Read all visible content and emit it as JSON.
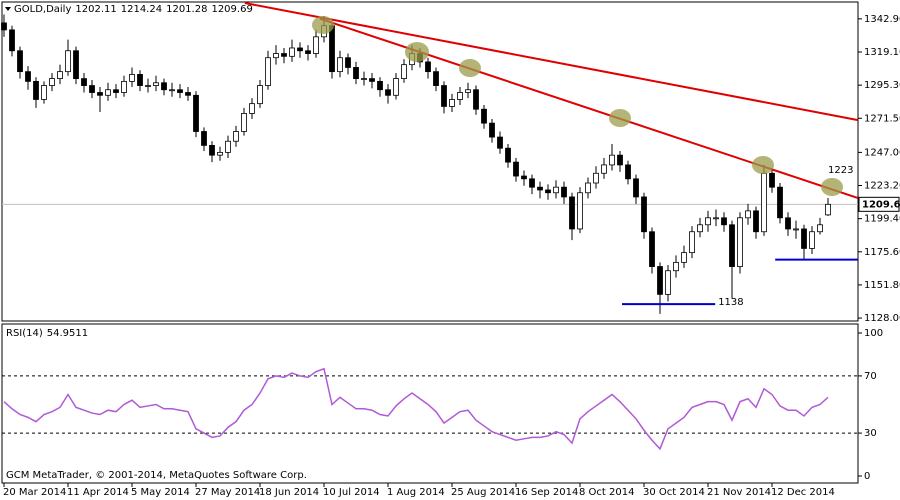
{
  "chart_data": [
    {
      "type": "candlestick",
      "symbol": "GOLD,Daily",
      "categories": [
        "20 Mar 2014",
        null,
        null,
        null,
        null,
        null,
        null,
        null,
        "11 Apr 2014",
        null,
        null,
        null,
        null,
        null,
        null,
        null,
        "5 May 2014",
        null,
        null,
        null,
        null,
        null,
        null,
        null,
        "27 May 2014",
        null,
        null,
        null,
        null,
        null,
        null,
        null,
        "18 Jun 2014",
        null,
        null,
        null,
        null,
        null,
        null,
        null,
        "10 Jul 2014",
        null,
        null,
        null,
        null,
        null,
        null,
        null,
        "1 Aug 2014",
        null,
        null,
        null,
        null,
        null,
        null,
        null,
        "25 Aug 2014",
        null,
        null,
        null,
        null,
        null,
        null,
        null,
        "16 Sep 2014",
        null,
        null,
        null,
        null,
        null,
        null,
        null,
        "8 Oct 2014",
        null,
        null,
        null,
        null,
        null,
        null,
        null,
        "30 Oct 2014",
        null,
        null,
        null,
        null,
        null,
        null,
        null,
        "21 Nov 2014",
        null,
        null,
        null,
        null,
        null,
        null,
        null,
        "12 Dec 2014",
        null,
        null,
        null,
        null,
        null,
        null,
        null
      ],
      "open": [
        1340,
        1335,
        1320,
        1305,
        1298,
        1285,
        1295,
        1300,
        1305,
        1320,
        1300,
        1295,
        1290,
        1288,
        1292,
        1290,
        1298,
        1303,
        1295,
        1295,
        1297,
        1292,
        1292,
        1290,
        1288,
        1262,
        1252,
        1245,
        1247,
        1255,
        1262,
        1275,
        1282,
        1295,
        1315,
        1318,
        1316,
        1322,
        1320,
        1318,
        1330,
        1338,
        1305,
        1315,
        1308,
        1300,
        1300,
        1298,
        1292,
        1288,
        1300,
        1310,
        1318,
        1312,
        1305,
        1295,
        1280,
        1285,
        1290,
        1292,
        1278,
        1268,
        1258,
        1250,
        1240,
        1230,
        1228,
        1222,
        1220,
        1218,
        1222,
        1215,
        1192,
        1218,
        1225,
        1232,
        1238,
        1245,
        1238,
        1228,
        1215,
        1190,
        1165,
        1145,
        1162,
        1168,
        1175,
        1190,
        1195,
        1200,
        1200,
        1195,
        1165,
        1200,
        1205,
        1190,
        1232,
        1222,
        1200,
        1192,
        1192,
        1178,
        1190,
        1202.11
      ],
      "high": [
        1346,
        1338,
        1323,
        1309,
        1301,
        1298,
        1304,
        1310,
        1328,
        1323,
        1304,
        1299,
        1294,
        1297,
        1296,
        1302,
        1308,
        1306,
        1300,
        1302,
        1300,
        1297,
        1296,
        1294,
        1291,
        1265,
        1255,
        1251,
        1259,
        1266,
        1279,
        1286,
        1299,
        1320,
        1324,
        1322,
        1328,
        1326,
        1324,
        1335,
        1345,
        1341,
        1320,
        1318,
        1312,
        1305,
        1304,
        1301,
        1296,
        1304,
        1314,
        1324,
        1322,
        1315,
        1308,
        1298,
        1289,
        1294,
        1297,
        1295,
        1281,
        1271,
        1262,
        1253,
        1243,
        1234,
        1231,
        1226,
        1224,
        1227,
        1226,
        1218,
        1222,
        1229,
        1237,
        1243,
        1253,
        1248,
        1241,
        1231,
        1218,
        1193,
        1168,
        1166,
        1173,
        1180,
        1194,
        1200,
        1205,
        1206,
        1204,
        1198,
        1204,
        1210,
        1208,
        1238,
        1236,
        1225,
        1204,
        1198,
        1195,
        1194,
        1200,
        1214.24
      ],
      "low": [
        1330,
        1316,
        1300,
        1292,
        1279,
        1282,
        1291,
        1296,
        1302,
        1296,
        1290,
        1286,
        1276,
        1284,
        1286,
        1287,
        1294,
        1291,
        1290,
        1291,
        1288,
        1287,
        1286,
        1284,
        1258,
        1248,
        1240,
        1241,
        1243,
        1251,
        1259,
        1271,
        1279,
        1292,
        1310,
        1311,
        1312,
        1315,
        1313,
        1315,
        1326,
        1300,
        1301,
        1303,
        1296,
        1295,
        1293,
        1287,
        1282,
        1285,
        1297,
        1306,
        1308,
        1300,
        1291,
        1275,
        1276,
        1281,
        1286,
        1274,
        1264,
        1254,
        1246,
        1236,
        1226,
        1223,
        1217,
        1214,
        1213,
        1214,
        1210,
        1184,
        1189,
        1214,
        1221,
        1228,
        1234,
        1233,
        1224,
        1210,
        1185,
        1160,
        1131,
        1140,
        1157,
        1164,
        1171,
        1186,
        1190,
        1194,
        1190,
        1142,
        1160,
        1195,
        1185,
        1187,
        1218,
        1196,
        1187,
        1185,
        1170,
        1174,
        1188,
        1201.28
      ],
      "close": [
        1335,
        1320,
        1305,
        1298,
        1285,
        1295,
        1300,
        1305,
        1320,
        1300,
        1295,
        1290,
        1288,
        1292,
        1290,
        1298,
        1303,
        1295,
        1295,
        1297,
        1292,
        1292,
        1290,
        1288,
        1262,
        1252,
        1245,
        1247,
        1255,
        1262,
        1275,
        1282,
        1295,
        1315,
        1318,
        1316,
        1322,
        1320,
        1318,
        1330,
        1338,
        1305,
        1315,
        1308,
        1300,
        1300,
        1298,
        1292,
        1288,
        1300,
        1310,
        1318,
        1312,
        1305,
        1295,
        1280,
        1285,
        1290,
        1292,
        1278,
        1268,
        1258,
        1250,
        1240,
        1230,
        1228,
        1222,
        1220,
        1218,
        1222,
        1215,
        1192,
        1218,
        1225,
        1232,
        1238,
        1245,
        1238,
        1228,
        1215,
        1190,
        1165,
        1145,
        1162,
        1168,
        1175,
        1190,
        1195,
        1200,
        1200,
        1195,
        1165,
        1200,
        1205,
        1190,
        1232,
        1222,
        1200,
        1192,
        1192,
        1178,
        1190,
        1195,
        1209.69
      ],
      "ylim": [
        1126.6,
        1354.3
      ],
      "yticks": [
        {
          "value": 1342.9,
          "label": "1342.90"
        },
        {
          "value": 1319.1,
          "label": "1319.10"
        },
        {
          "value": 1295.3,
          "label": "1295.30"
        },
        {
          "value": 1271.5,
          "label": "1271.50"
        },
        {
          "value": 1247,
          "label": "1247.00"
        },
        {
          "value": 1223.2,
          "label": "1223.20"
        },
        {
          "value": 1199.4,
          "label": "1199.40"
        },
        {
          "value": 1175.6,
          "label": "1175.60"
        },
        {
          "value": 1151.8,
          "label": "1151.80"
        },
        {
          "value": 1128,
          "label": "1128.00"
        }
      ],
      "current_price_line": true,
      "lines": [
        {
          "color": "#e00000",
          "x": [
            30.1,
            106.75
          ],
          "y": [
            1354.3,
            1270.2
          ]
        },
        {
          "color": "#e00000",
          "x": [
            39.5,
            106.75
          ],
          "y": [
            1343,
            1214.2
          ],
          "label": "1223"
        },
        {
          "color": "#0000cc",
          "x": [
            77.25,
            88.9
          ],
          "y": [
            1138,
            1138
          ],
          "label": "1138"
        },
        {
          "color": "#0000cc",
          "x": [
            96.4,
            106.75
          ],
          "y": [
            1170,
            1170
          ]
        }
      ]
    },
    {
      "type": "line",
      "title": "RSI(14)",
      "last_value": 54.9511,
      "color": "#b05ad6",
      "values": [
        52,
        47,
        43,
        41,
        38,
        43,
        45,
        48,
        57,
        48,
        46,
        44,
        43,
        46,
        45,
        50,
        53,
        48,
        49,
        50,
        47,
        47,
        46,
        45,
        33,
        30,
        27,
        28,
        34,
        38,
        46,
        50,
        58,
        68,
        70,
        69,
        72,
        70,
        69,
        73,
        75,
        50,
        55,
        51,
        47,
        47,
        46,
        43,
        42,
        49,
        54,
        58,
        54,
        50,
        45,
        37,
        41,
        45,
        46,
        39,
        35,
        31,
        29,
        27,
        25,
        26,
        27,
        27,
        28,
        31,
        29,
        23,
        40,
        45,
        49,
        53,
        57,
        52,
        46,
        40,
        32,
        25,
        19,
        33,
        37,
        41,
        48,
        50,
        52,
        52,
        50,
        39,
        52,
        54,
        48,
        61,
        57,
        49,
        46,
        46,
        42,
        48,
        50,
        55
      ],
      "ylim": [
        -4.9,
        106.3
      ],
      "yticks": [
        0,
        30,
        70,
        100
      ],
      "levels": [
        30,
        70
      ]
    }
  ],
  "footer": "GCM MetaTrader, © 2001-2014, MetaQuotes Software Corp."
}
